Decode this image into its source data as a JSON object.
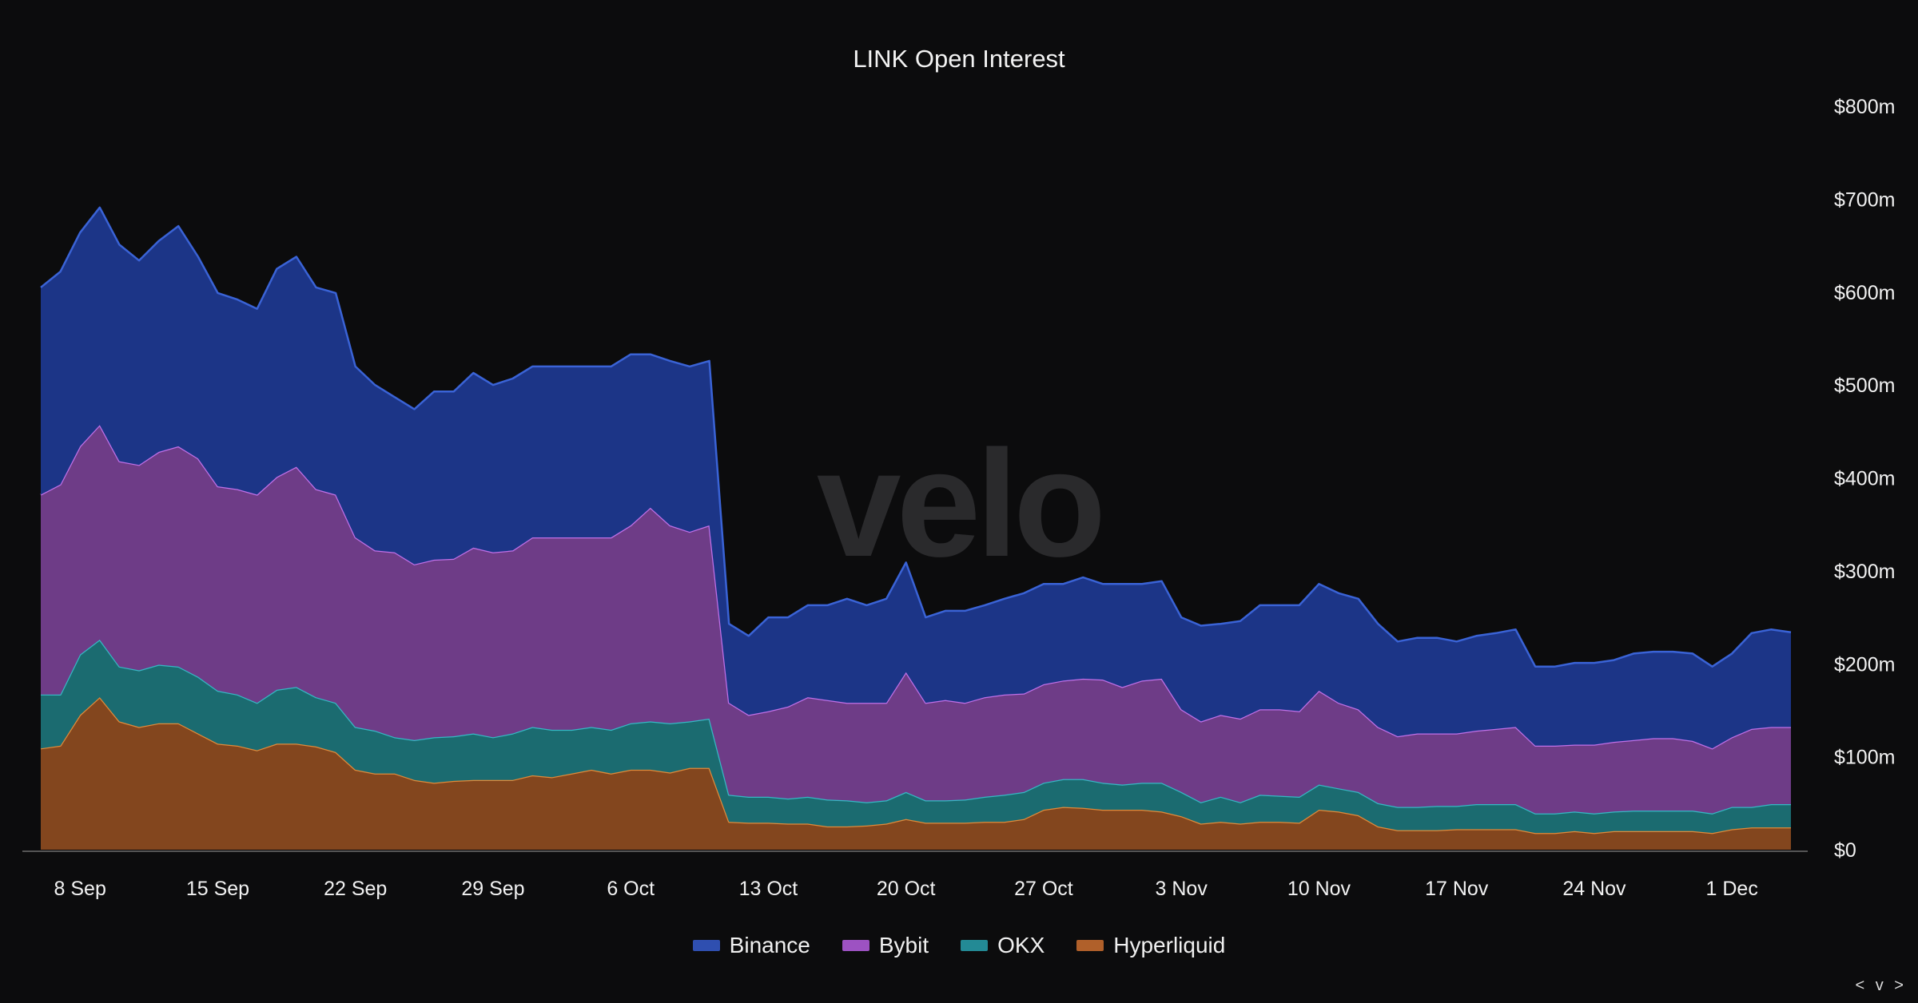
{
  "chart_data": {
    "type": "area",
    "stacked": true,
    "title": "LINK Open Interest",
    "watermark": "velo",
    "ylim": [
      0,
      800
    ],
    "y_unit": "$m",
    "y_ticks": [
      "$0",
      "$100m",
      "$200m",
      "$300m",
      "$400m",
      "$500m",
      "$600m",
      "$700m",
      "$800m"
    ],
    "x_ticks": [
      "8 Sep",
      "15 Sep",
      "22 Sep",
      "29 Sep",
      "6 Oct",
      "13 Oct",
      "20 Oct",
      "27 Oct",
      "3 Nov",
      "10 Nov",
      "17 Nov",
      "24 Nov",
      "1 Dec"
    ],
    "grid": false,
    "legend_position": "bottom",
    "x": [
      "6 Sep",
      "7 Sep",
      "8 Sep",
      "9 Sep",
      "10 Sep",
      "11 Sep",
      "12 Sep",
      "13 Sep",
      "14 Sep",
      "15 Sep",
      "16 Sep",
      "17 Sep",
      "18 Sep",
      "19 Sep",
      "20 Sep",
      "21 Sep",
      "22 Sep",
      "23 Sep",
      "24 Sep",
      "25 Sep",
      "26 Sep",
      "27 Sep",
      "28 Sep",
      "29 Sep",
      "30 Sep",
      "1 Oct",
      "2 Oct",
      "3 Oct",
      "4 Oct",
      "5 Oct",
      "6 Oct",
      "7 Oct",
      "8 Oct",
      "9 Oct",
      "10 Oct",
      "11 Oct",
      "12 Oct",
      "13 Oct",
      "14 Oct",
      "15 Oct",
      "16 Oct",
      "17 Oct",
      "18 Oct",
      "19 Oct",
      "20 Oct",
      "21 Oct",
      "22 Oct",
      "23 Oct",
      "24 Oct",
      "25 Oct",
      "26 Oct",
      "27 Oct",
      "28 Oct",
      "29 Oct",
      "30 Oct",
      "31 Oct",
      "1 Nov",
      "2 Nov",
      "3 Nov",
      "4 Nov",
      "5 Nov",
      "6 Nov",
      "7 Nov",
      "8 Nov",
      "9 Nov",
      "10 Nov",
      "11 Nov",
      "12 Nov",
      "13 Nov",
      "14 Nov",
      "15 Nov",
      "16 Nov",
      "17 Nov",
      "18 Nov",
      "19 Nov",
      "20 Nov",
      "21 Nov",
      "22 Nov",
      "23 Nov",
      "24 Nov",
      "25 Nov",
      "26 Nov",
      "27 Nov",
      "28 Nov",
      "29 Nov",
      "30 Nov",
      "1 Dec",
      "2 Dec",
      "3 Dec",
      "4 Dec"
    ],
    "series": [
      {
        "name": "Hyperliquid",
        "fill": "#83461e",
        "line": "#e08a3a",
        "values": [
          109,
          112,
          145,
          164,
          138,
          132,
          136,
          136,
          125,
          114,
          112,
          107,
          114,
          114,
          111,
          105,
          86,
          82,
          82,
          75,
          72,
          74,
          75,
          75,
          75,
          80,
          78,
          82,
          86,
          82,
          86,
          86,
          83,
          88,
          88,
          30,
          29,
          29,
          28,
          28,
          25,
          25,
          26,
          28,
          33,
          29,
          29,
          29,
          30,
          30,
          33,
          43,
          46,
          45,
          43,
          43,
          43,
          41,
          36,
          28,
          30,
          28,
          30,
          30,
          29,
          43,
          41,
          37,
          25,
          21,
          21,
          21,
          22,
          22,
          22,
          22,
          18,
          18,
          20,
          18,
          20,
          20,
          20,
          20,
          20,
          18,
          22,
          24,
          24,
          24
        ]
      },
      {
        "name": "OKX",
        "fill": "#1b6b70",
        "line": "#35b8c4",
        "values": [
          58,
          55,
          65,
          62,
          59,
          61,
          63,
          61,
          61,
          57,
          55,
          51,
          58,
          61,
          53,
          53,
          46,
          46,
          39,
          43,
          49,
          48,
          50,
          46,
          50,
          52,
          51,
          47,
          46,
          47,
          50,
          52,
          53,
          50,
          53,
          29,
          28,
          28,
          27,
          29,
          29,
          28,
          25,
          25,
          29,
          24,
          24,
          25,
          27,
          29,
          29,
          29,
          30,
          31,
          29,
          27,
          29,
          31,
          26,
          23,
          27,
          23,
          29,
          28,
          28,
          27,
          25,
          25,
          25,
          25,
          25,
          26,
          25,
          27,
          27,
          27,
          21,
          21,
          21,
          21,
          21,
          22,
          22,
          22,
          22,
          21,
          24,
          22,
          25,
          25
        ]
      },
      {
        "name": "Bybit",
        "fill": "#6e3c87",
        "line": "#c070e8",
        "values": [
          215,
          226,
          224,
          231,
          221,
          221,
          229,
          237,
          235,
          220,
          221,
          224,
          229,
          237,
          224,
          224,
          204,
          194,
          199,
          189,
          191,
          191,
          200,
          199,
          197,
          204,
          207,
          207,
          204,
          207,
          213,
          230,
          213,
          204,
          208,
          99,
          88,
          92,
          99,
          107,
          107,
          105,
          107,
          105,
          129,
          105,
          108,
          104,
          107,
          108,
          106,
          106,
          106,
          108,
          111,
          105,
          110,
          112,
          89,
          87,
          88,
          90,
          92,
          93,
          92,
          101,
          92,
          89,
          82,
          76,
          79,
          78,
          78,
          79,
          81,
          83,
          73,
          73,
          72,
          74,
          75,
          76,
          78,
          78,
          75,
          70,
          75,
          84,
          83,
          83
        ]
      },
      {
        "name": "Binance",
        "fill": "#1c3587",
        "line": "#3a63d6",
        "values": [
          223,
          229,
          230,
          234,
          233,
          220,
          227,
          237,
          217,
          208,
          204,
          200,
          224,
          226,
          217,
          217,
          184,
          178,
          167,
          167,
          181,
          180,
          188,
          180,
          185,
          184,
          184,
          184,
          184,
          184,
          184,
          165,
          177,
          178,
          177,
          85,
          85,
          101,
          96,
          99,
          102,
          112,
          105,
          112,
          118,
          92,
          96,
          99,
          99,
          103,
          108,
          108,
          104,
          109,
          103,
          111,
          104,
          105,
          99,
          103,
          98,
          105,
          112,
          112,
          114,
          115,
          118,
          119,
          111,
          102,
          103,
          103,
          99,
          102,
          103,
          105,
          85,
          85,
          88,
          88,
          88,
          93,
          93,
          93,
          94,
          88,
          90,
          103,
          105,
          102
        ]
      }
    ],
    "legend": [
      {
        "name": "Binance",
        "color": "#2f4fb0"
      },
      {
        "name": "Bybit",
        "color": "#9d52c2"
      },
      {
        "name": "OKX",
        "color": "#238a95"
      },
      {
        "name": "Hyperliquid",
        "color": "#b0602a"
      }
    ]
  },
  "nav": {
    "label": "< v >"
  }
}
